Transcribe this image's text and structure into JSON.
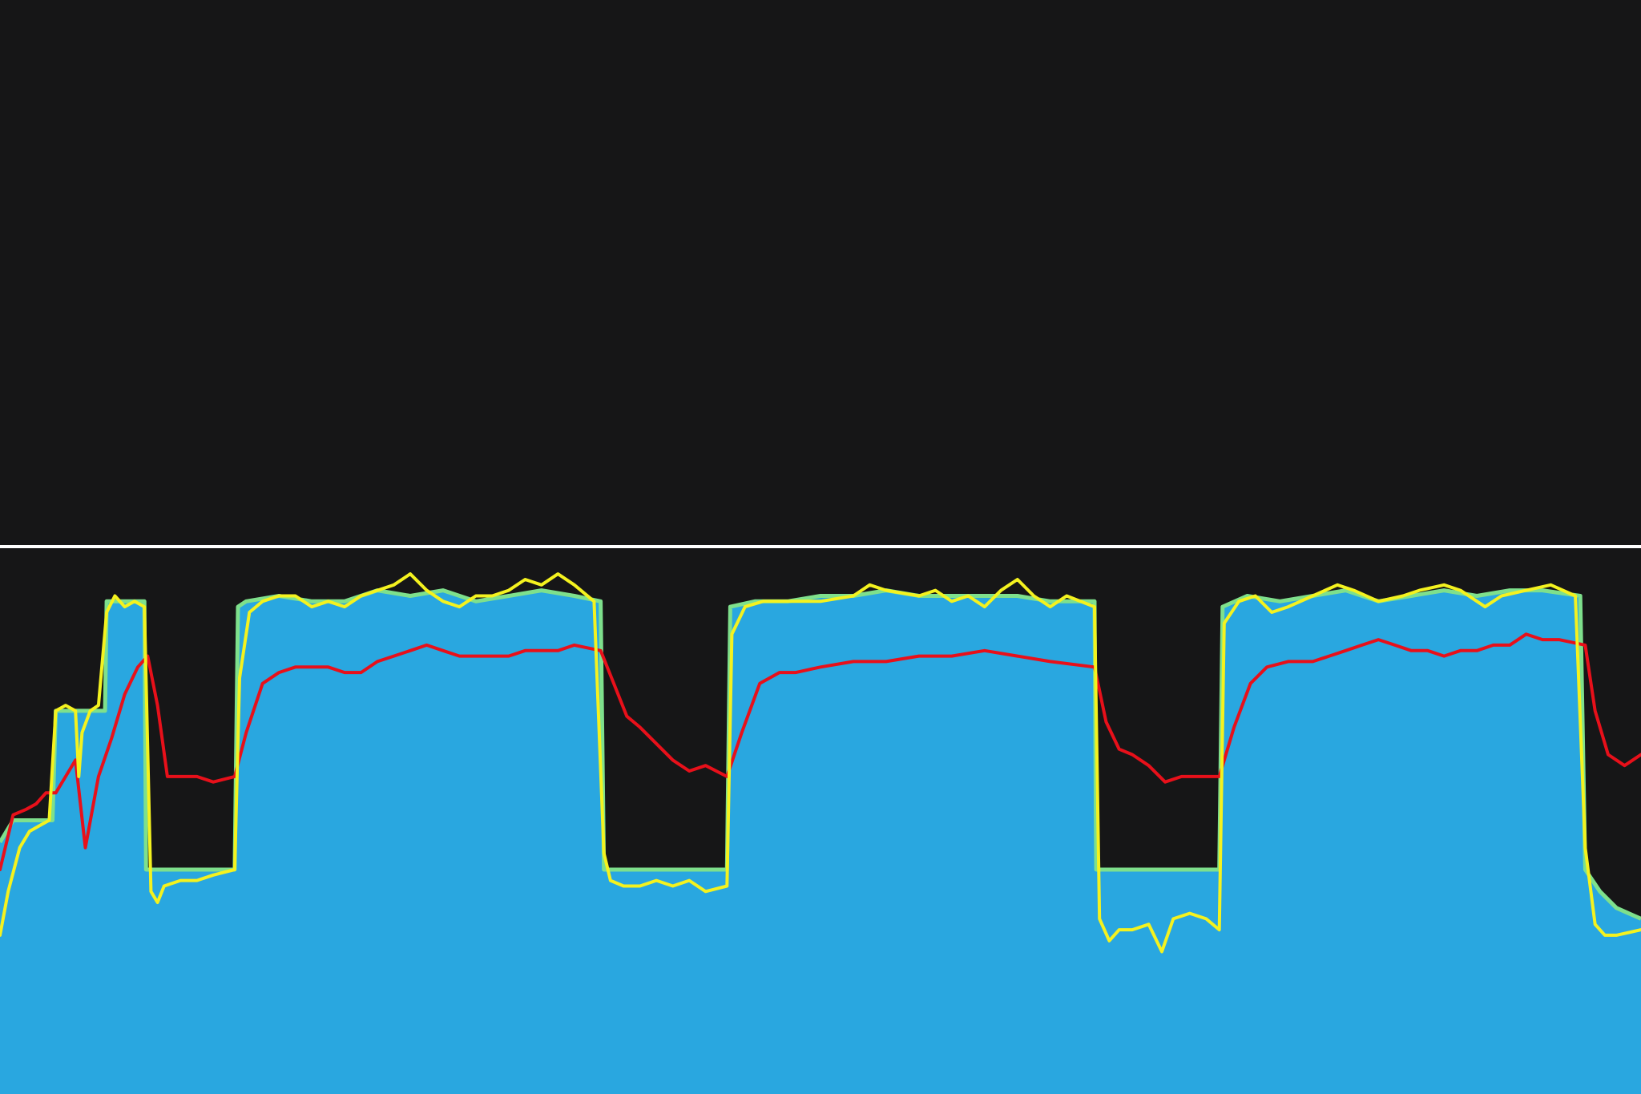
{
  "chart_data": {
    "type": "area",
    "title": "",
    "xlabel": "",
    "ylabel": "",
    "grid": false,
    "legend": "none",
    "xlim": [
      0,
      100
    ],
    "ylim": [
      0,
      100
    ],
    "colors": {
      "background": "#161617",
      "baseline": "#ffffff",
      "area_fill": "#29a7e0",
      "area_edge": "#7ee08c",
      "fast_line": "#f4f21f",
      "slow_line": "#e8101a"
    },
    "baseline_y": 100,
    "series": [
      {
        "key": "target",
        "style": "filled-step-area",
        "points": [
          [
            0,
            46
          ],
          [
            0.8,
            50
          ],
          [
            3.2,
            50
          ],
          [
            3.4,
            70
          ],
          [
            6.4,
            70
          ],
          [
            6.5,
            90
          ],
          [
            8.8,
            90
          ],
          [
            8.9,
            41
          ],
          [
            14.3,
            41
          ],
          [
            14.5,
            89
          ],
          [
            15,
            90
          ],
          [
            17,
            91
          ],
          [
            19,
            90
          ],
          [
            21,
            90
          ],
          [
            23,
            92
          ],
          [
            25,
            91
          ],
          [
            27,
            92
          ],
          [
            29,
            90
          ],
          [
            31,
            91
          ],
          [
            33,
            92
          ],
          [
            35,
            91
          ],
          [
            36.6,
            90
          ],
          [
            36.8,
            41
          ],
          [
            44.3,
            41
          ],
          [
            44.5,
            89
          ],
          [
            46,
            90
          ],
          [
            48,
            90
          ],
          [
            50,
            91
          ],
          [
            52,
            91
          ],
          [
            54,
            92
          ],
          [
            56,
            91
          ],
          [
            58,
            91
          ],
          [
            60,
            91
          ],
          [
            62,
            91
          ],
          [
            64,
            90
          ],
          [
            66.7,
            90
          ],
          [
            66.8,
            41
          ],
          [
            74.3,
            41
          ],
          [
            74.5,
            89
          ],
          [
            76,
            91
          ],
          [
            78,
            90
          ],
          [
            80,
            91
          ],
          [
            82,
            92
          ],
          [
            84,
            90
          ],
          [
            86,
            91
          ],
          [
            88,
            92
          ],
          [
            90,
            91
          ],
          [
            92,
            92
          ],
          [
            94,
            92
          ],
          [
            96.3,
            91
          ],
          [
            96.6,
            41
          ],
          [
            97.5,
            37
          ],
          [
            98.5,
            34
          ],
          [
            100,
            32
          ]
        ]
      },
      {
        "key": "actual",
        "style": "line",
        "points": [
          [
            0,
            29
          ],
          [
            0.5,
            37
          ],
          [
            1.2,
            45
          ],
          [
            1.8,
            48
          ],
          [
            2.4,
            49
          ],
          [
            3.0,
            50
          ],
          [
            3.4,
            70
          ],
          [
            4.0,
            71
          ],
          [
            4.6,
            70
          ],
          [
            4.8,
            58
          ],
          [
            5.0,
            66
          ],
          [
            5.5,
            70
          ],
          [
            6.0,
            71
          ],
          [
            6.5,
            88
          ],
          [
            7.0,
            91
          ],
          [
            7.6,
            89
          ],
          [
            8.2,
            90
          ],
          [
            8.8,
            89
          ],
          [
            9.2,
            37
          ],
          [
            9.6,
            35
          ],
          [
            10,
            38
          ],
          [
            11,
            39
          ],
          [
            12,
            39
          ],
          [
            13,
            40
          ],
          [
            14.3,
            41
          ],
          [
            14.6,
            76
          ],
          [
            15.2,
            88
          ],
          [
            16,
            90
          ],
          [
            17,
            91
          ],
          [
            18,
            91
          ],
          [
            19,
            89
          ],
          [
            20,
            90
          ],
          [
            21,
            89
          ],
          [
            22,
            91
          ],
          [
            23,
            92
          ],
          [
            24,
            93
          ],
          [
            25,
            95
          ],
          [
            26,
            92
          ],
          [
            27,
            90
          ],
          [
            28,
            89
          ],
          [
            29,
            91
          ],
          [
            30,
            91
          ],
          [
            31,
            92
          ],
          [
            32,
            94
          ],
          [
            33,
            93
          ],
          [
            34,
            95
          ],
          [
            35,
            93
          ],
          [
            36.2,
            90
          ],
          [
            36.8,
            44
          ],
          [
            37.2,
            39
          ],
          [
            38,
            38
          ],
          [
            39,
            38
          ],
          [
            40,
            39
          ],
          [
            41,
            38
          ],
          [
            42,
            39
          ],
          [
            43,
            37
          ],
          [
            44.3,
            38
          ],
          [
            44.6,
            84
          ],
          [
            45.4,
            89
          ],
          [
            46.5,
            90
          ],
          [
            48,
            90
          ],
          [
            50,
            90
          ],
          [
            52,
            91
          ],
          [
            53,
            93
          ],
          [
            54,
            92
          ],
          [
            56,
            91
          ],
          [
            57,
            92
          ],
          [
            58,
            90
          ],
          [
            59,
            91
          ],
          [
            60,
            89
          ],
          [
            61,
            92
          ],
          [
            62,
            94
          ],
          [
            63,
            91
          ],
          [
            64,
            89
          ],
          [
            65,
            91
          ],
          [
            66.7,
            89
          ],
          [
            67.0,
            32
          ],
          [
            67.6,
            28
          ],
          [
            68.2,
            30
          ],
          [
            69,
            30
          ],
          [
            70,
            31
          ],
          [
            70.8,
            26
          ],
          [
            71.5,
            32
          ],
          [
            72.5,
            33
          ],
          [
            73.5,
            32
          ],
          [
            74.3,
            30
          ],
          [
            74.6,
            86
          ],
          [
            75.5,
            90
          ],
          [
            76.5,
            91
          ],
          [
            77.5,
            88
          ],
          [
            78.5,
            89
          ],
          [
            80,
            91
          ],
          [
            81.5,
            93
          ],
          [
            82.5,
            92
          ],
          [
            84,
            90
          ],
          [
            85.5,
            91
          ],
          [
            86.5,
            92
          ],
          [
            88,
            93
          ],
          [
            89,
            92
          ],
          [
            90.5,
            89
          ],
          [
            91.5,
            91
          ],
          [
            93,
            92
          ],
          [
            94.5,
            93
          ],
          [
            96,
            91
          ],
          [
            96.6,
            45
          ],
          [
            97.2,
            31
          ],
          [
            97.8,
            29
          ],
          [
            98.5,
            29
          ],
          [
            100,
            30
          ]
        ]
      },
      {
        "key": "average",
        "style": "line",
        "points": [
          [
            0,
            41
          ],
          [
            0.8,
            51
          ],
          [
            1.6,
            52
          ],
          [
            2.2,
            53
          ],
          [
            2.8,
            55
          ],
          [
            3.4,
            55
          ],
          [
            4.0,
            58
          ],
          [
            4.6,
            61
          ],
          [
            5.2,
            45
          ],
          [
            6.0,
            58
          ],
          [
            6.8,
            65
          ],
          [
            7.6,
            73
          ],
          [
            8.4,
            78
          ],
          [
            9.0,
            80
          ],
          [
            9.6,
            71
          ],
          [
            10.2,
            58
          ],
          [
            11,
            58
          ],
          [
            12,
            58
          ],
          [
            13,
            57
          ],
          [
            14.3,
            58
          ],
          [
            15.0,
            66
          ],
          [
            16,
            75
          ],
          [
            17,
            77
          ],
          [
            18,
            78
          ],
          [
            19,
            78
          ],
          [
            20,
            78
          ],
          [
            21,
            77
          ],
          [
            22,
            77
          ],
          [
            23,
            79
          ],
          [
            24,
            80
          ],
          [
            25,
            81
          ],
          [
            26,
            82
          ],
          [
            27,
            81
          ],
          [
            28,
            80
          ],
          [
            29,
            80
          ],
          [
            30,
            80
          ],
          [
            31,
            80
          ],
          [
            32,
            81
          ],
          [
            33,
            81
          ],
          [
            34,
            81
          ],
          [
            35,
            82
          ],
          [
            36.6,
            81
          ],
          [
            37.4,
            75
          ],
          [
            38.2,
            69
          ],
          [
            39,
            67
          ],
          [
            40,
            64
          ],
          [
            41,
            61
          ],
          [
            42,
            59
          ],
          [
            43,
            60
          ],
          [
            44.3,
            58
          ],
          [
            45.2,
            66
          ],
          [
            46.3,
            75
          ],
          [
            47.5,
            77
          ],
          [
            48.5,
            77
          ],
          [
            50,
            78
          ],
          [
            52,
            79
          ],
          [
            54,
            79
          ],
          [
            56,
            80
          ],
          [
            58,
            80
          ],
          [
            60,
            81
          ],
          [
            62,
            80
          ],
          [
            64,
            79
          ],
          [
            66.7,
            78
          ],
          [
            67.4,
            68
          ],
          [
            68.2,
            63
          ],
          [
            69,
            62
          ],
          [
            70,
            60
          ],
          [
            71,
            57
          ],
          [
            72,
            58
          ],
          [
            73,
            58
          ],
          [
            74.3,
            58
          ],
          [
            75.2,
            67
          ],
          [
            76.2,
            75
          ],
          [
            77.2,
            78
          ],
          [
            78.5,
            79
          ],
          [
            80,
            79
          ],
          [
            81,
            80
          ],
          [
            82,
            81
          ],
          [
            83,
            82
          ],
          [
            84,
            83
          ],
          [
            85,
            82
          ],
          [
            86,
            81
          ],
          [
            87,
            81
          ],
          [
            88,
            80
          ],
          [
            89,
            81
          ],
          [
            90,
            81
          ],
          [
            91,
            82
          ],
          [
            92,
            82
          ],
          [
            93,
            84
          ],
          [
            94,
            83
          ],
          [
            95,
            83
          ],
          [
            96.6,
            82
          ],
          [
            97.2,
            70
          ],
          [
            98,
            62
          ],
          [
            99,
            60
          ],
          [
            100,
            62
          ]
        ]
      }
    ]
  }
}
